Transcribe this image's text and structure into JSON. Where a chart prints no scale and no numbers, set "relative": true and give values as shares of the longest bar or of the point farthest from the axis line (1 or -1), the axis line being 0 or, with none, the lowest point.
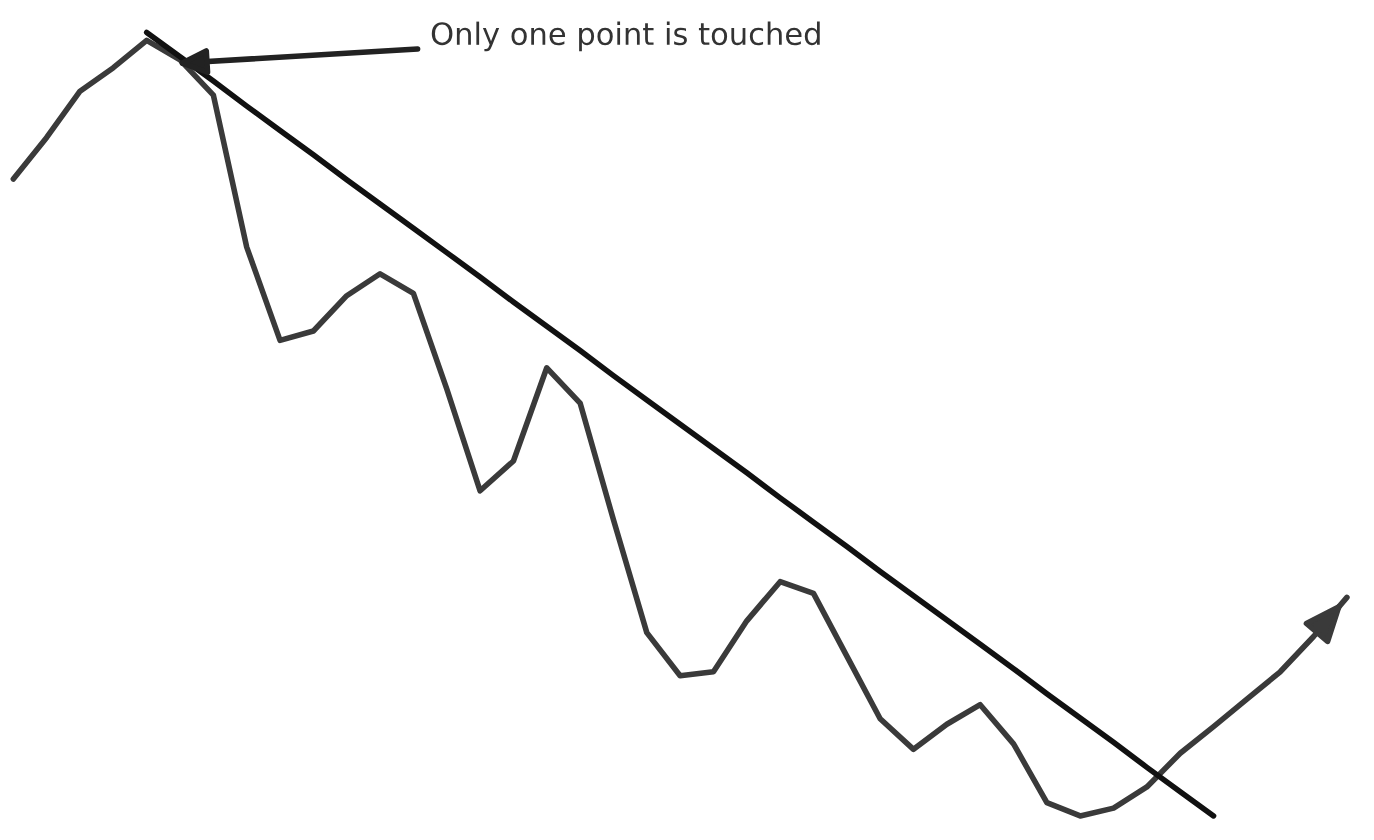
{
  "chart_data": {
    "type": "line",
    "relative": true,
    "categories": [
      null,
      null,
      null,
      null,
      null,
      null,
      null,
      null,
      null,
      null,
      null,
      null,
      null,
      null,
      null,
      null,
      null,
      null,
      null,
      null,
      null,
      null,
      null,
      null,
      null,
      null,
      null,
      null,
      null,
      null,
      null,
      null,
      null,
      null,
      null,
      null,
      null,
      null,
      null,
      null,
      null
    ],
    "series": [
      {
        "color": "#3a3a3a",
        "values": [
          0.813,
          0.866,
          0.925,
          0.955,
          0.99,
          0.965,
          0.92,
          0.726,
          0.607,
          0.619,
          0.664,
          0.692,
          0.667,
          0.545,
          0.415,
          0.453,
          0.572,
          0.527,
          0.378,
          0.234,
          0.179,
          0.184,
          0.249,
          0.299,
          0.284,
          0.204,
          0.124,
          0.085,
          0.117,
          0.142,
          0.092,
          0.017,
          0.0,
          0.01,
          0.037,
          0.08,
          0.114,
          0.149,
          0.184,
          0.229,
          0.279
        ]
      },
      {
        "color": "#111111",
        "values": [
          null,
          null,
          null,
          null,
          1.0,
          0.969,
          0.938,
          0.906,
          0.875,
          0.844,
          0.812,
          0.781,
          0.75,
          0.719,
          0.688,
          0.656,
          0.625,
          0.594,
          0.562,
          0.531,
          0.5,
          0.469,
          0.438,
          0.406,
          0.375,
          0.344,
          0.312,
          0.281,
          0.25,
          0.219,
          0.188,
          0.156,
          0.125,
          0.094,
          0.062,
          0.031,
          0.0,
          null,
          null,
          null,
          null
        ]
      }
    ],
    "annotations": [
      "Only one point is touched"
    ]
  }
}
